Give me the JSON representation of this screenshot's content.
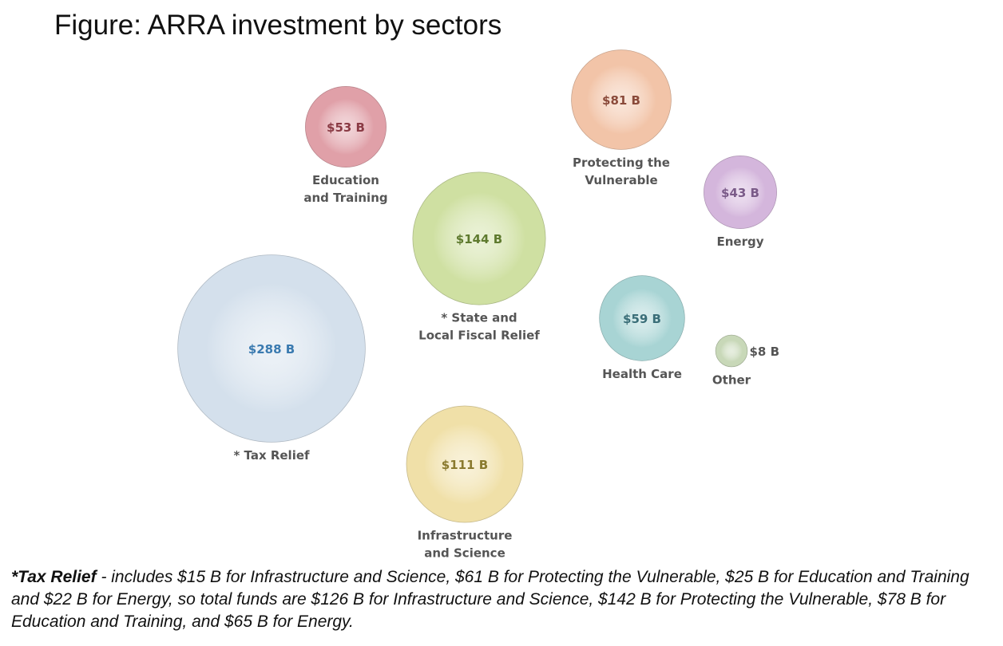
{
  "title": "Figure: ARRA investment by sectors",
  "chart_data": {
    "type": "bubble",
    "title": "Figure: ARRA investment by sectors",
    "unit": "B",
    "series": [
      {
        "name": "Education and Training",
        "label_lines": [
          "Education",
          "and Training"
        ],
        "value": 53,
        "value_label": "$53 B",
        "color": "#e0a0a8",
        "text_color": "#8a3a44",
        "label_pos": "below"
      },
      {
        "name": "Protecting the Vulnerable",
        "label_lines": [
          "Protecting the",
          "Vulnerable"
        ],
        "value": 81,
        "value_label": "$81 B",
        "color": "#f2c4a8",
        "text_color": "#8a4a3a",
        "label_pos": "below"
      },
      {
        "name": "Energy",
        "label_lines": [
          "Energy"
        ],
        "value": 43,
        "value_label": "$43 B",
        "color": "#d4b6dc",
        "text_color": "#7a5a88",
        "label_pos": "below"
      },
      {
        "name": "* State and Local Fiscal Relief",
        "label_lines": [
          "* State and",
          "Local Fiscal Relief"
        ],
        "value": 144,
        "value_label": "$144 B",
        "color": "#cfe0a2",
        "text_color": "#5e7a2e",
        "label_pos": "below"
      },
      {
        "name": "* Tax Relief",
        "label_lines": [
          "* Tax Relief"
        ],
        "value": 288,
        "value_label": "$288 B",
        "color": "#d4e0ec",
        "text_color": "#3a7ab0",
        "label_pos": "below"
      },
      {
        "name": "Health Care",
        "label_lines": [
          "Health Care"
        ],
        "value": 59,
        "value_label": "$59 B",
        "color": "#a8d4d4",
        "text_color": "#3a6e78",
        "label_pos": "below"
      },
      {
        "name": "Other",
        "label_lines": [
          "Other"
        ],
        "value": 8,
        "value_label": "$8 B",
        "color": "#c8d8b8",
        "text_color": "#555555",
        "label_pos": "right"
      },
      {
        "name": "Infrastructure and Science",
        "label_lines": [
          "Infrastructure",
          "and Science"
        ],
        "value": 111,
        "value_label": "$111 B",
        "color": "#f0e0a8",
        "text_color": "#8a7a2e",
        "label_pos": "below"
      }
    ]
  },
  "footnote": {
    "bold": "*Tax Relief",
    "text": " - includes $15 B for Infrastructure and Science, $61 B for Protecting the Vulnerable, $25 B for Education and Training and $22 B for Energy, so total funds are $126 B for Infrastructure and Science, $142 B for Protecting the Vulnerable, $78 B for Education and Training, and $65 B for Energy."
  }
}
